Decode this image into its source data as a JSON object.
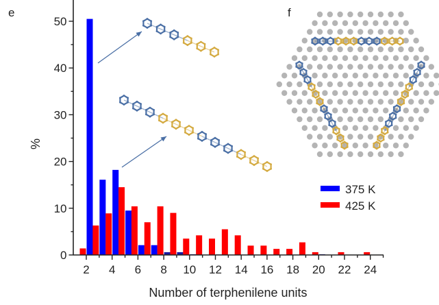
{
  "panel_labels": {
    "main": "e",
    "inset": "f"
  },
  "chart_data": {
    "type": "bar",
    "title": "",
    "xlabel": "Number of terphenilene units",
    "ylabel": "%",
    "xlim": [
      1,
      25
    ],
    "ylim": [
      0,
      54
    ],
    "xticks": [
      2,
      4,
      6,
      8,
      10,
      12,
      14,
      16,
      18,
      20,
      22,
      24
    ],
    "yticks": [
      0,
      10,
      20,
      30,
      40,
      50
    ],
    "grid": false,
    "legend_position": "center-right",
    "x": [
      2,
      3,
      4,
      5,
      6,
      7,
      8,
      9,
      10,
      11,
      12,
      13,
      14,
      15,
      16,
      17,
      18,
      19,
      20,
      21,
      22,
      23,
      24
    ],
    "series": [
      {
        "name": "375 K",
        "color": "#0000ff",
        "values": [
          50.5,
          16.1,
          18.2,
          9.5,
          2.1,
          2.1,
          0.6,
          0.6,
          0.15,
          0,
          0.1,
          0,
          0,
          0,
          0,
          0,
          0,
          0,
          0.15,
          0,
          0,
          0,
          0
        ]
      },
      {
        "name": "425 K",
        "color": "#ff0000",
        "values": [
          1.4,
          6.3,
          8.9,
          14.5,
          10.4,
          7.0,
          10.4,
          9.0,
          3.5,
          4.2,
          3.5,
          5.5,
          4.2,
          2.0,
          2.0,
          1.3,
          1.3,
          2.7,
          0.6,
          0,
          0.6,
          0,
          0.6
        ]
      }
    ],
    "annotations": [
      {
        "type": "arrow-to-molecule",
        "from_bar": {
          "series": "375 K",
          "x": 2
        },
        "molecule": "6-ring chain (3 blue + 3 yellow rings)"
      },
      {
        "type": "arrow-to-molecule",
        "from_bar": {
          "series": "375 K",
          "x": 4
        },
        "molecule": "12-ring chain (blue/yellow alternating triplets)"
      }
    ]
  },
  "inset": {
    "description": "hexagonal lattice of substrate atoms with adsorbed terphenilene chains forming a triangle",
    "lattice_color": "#b4b4b4",
    "segment_colors": {
      "blue": "#4a6fa5",
      "yellow": "#d4aa40"
    }
  },
  "colors": {
    "arrow": "#4a6fa5",
    "axis": "#222222"
  }
}
